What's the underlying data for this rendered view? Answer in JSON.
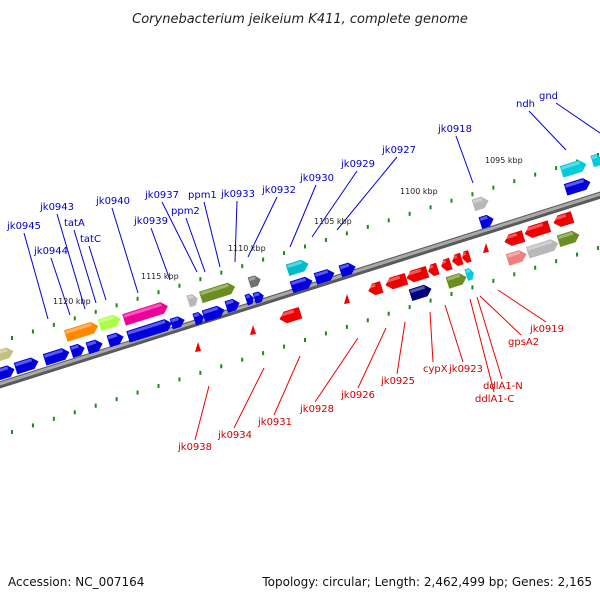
{
  "title": "Corynebacterium jeikeium K411, complete genome",
  "footer": {
    "accession": "Accession: NC_007164",
    "topology": "Topology: circular; Length: 2,462,499 bp; Genes: 2,165"
  },
  "colors": {
    "forward": "#0000dd",
    "reverse": "#ee0000",
    "forward_label": "#0000c8",
    "reverse_label": "#d00000",
    "tick": "#1a8a1a",
    "backbone": "#8a8a8a"
  },
  "kbp_labels": [
    "1095 kbp",
    "1100 kbp",
    "1105 kbp",
    "1110 kbp",
    "1115 kbp",
    "1120 kbp"
  ],
  "forward_labels": [
    "gnd",
    "ndh",
    "jk0918",
    "jk0927",
    "jk0929",
    "jk0930",
    "jk0932",
    "jk0933",
    "ppm1",
    "jk0937",
    "ppm2",
    "jk0939",
    "jk0940",
    "jk0943",
    "tatA",
    "tatC",
    "jk0944",
    "jk0945"
  ],
  "reverse_labels": [
    "jk0919",
    "gpsA2",
    "ddlA1-C",
    "ddlA1-N",
    "jk0923",
    "cypX",
    "jk0925",
    "jk0926",
    "jk0928",
    "jk0931",
    "jk0934",
    "jk0938"
  ]
}
